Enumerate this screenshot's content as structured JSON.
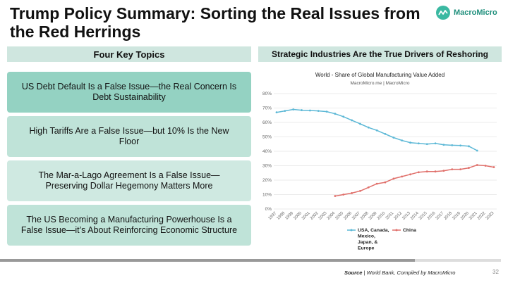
{
  "title": "Trump Policy Summary: Sorting the Real Issues from the Red Herrings",
  "brand": {
    "name": "MacroMicro",
    "color": "#3bb9a2"
  },
  "left_header": "Four Key Topics",
  "right_header": "Strategic Industries Are the True Drivers of Reshoring",
  "topics": [
    "US Debt Default Is a False Issue—the Real Concern Is Debt Sustainability",
    "High Tariffs Are a False Issue—but 10% Is the New Floor",
    "The Mar-a-Lago Agreement Is a False Issue—Preserving Dollar Hegemony Matters More",
    "The US Becoming a Manufacturing Powerhouse Is a False Issue—it’s About Reinforcing Economic Structure"
  ],
  "chart_data": {
    "type": "line",
    "title": "World - Share of Global Manufacturing Value Added",
    "subtitle": "MacroMicro.me | MacroMicro",
    "x": [
      "1997",
      "1998",
      "1999",
      "2000",
      "2001",
      "2002",
      "2003",
      "2004",
      "2005",
      "2006",
      "2007",
      "2008",
      "2009",
      "2010",
      "2011",
      "2012",
      "2013",
      "2014",
      "2015",
      "2016",
      "2017",
      "2018",
      "2019",
      "2020",
      "2021",
      "2022",
      "2023"
    ],
    "yticks": [
      "0%",
      "10%",
      "20%",
      "30%",
      "40%",
      "50%",
      "60%",
      "70%",
      "80%"
    ],
    "ylim": [
      0,
      80
    ],
    "series": [
      {
        "name": "USA, Canada, Mexico, Japan, & Europe",
        "color": "#5cb8d6",
        "values": [
          67,
          68,
          69,
          68.5,
          68.3,
          68,
          67.5,
          66,
          64,
          61.5,
          59,
          56.5,
          54.5,
          52,
          49.5,
          47.5,
          46,
          45.5,
          45,
          45.5,
          44.5,
          44.2,
          44,
          43.5,
          40.5,
          null,
          null
        ]
      },
      {
        "name": "China",
        "color": "#e06f6a",
        "values": [
          null,
          null,
          null,
          null,
          null,
          null,
          null,
          9,
          10,
          11,
          12.5,
          15,
          17.5,
          18.5,
          21,
          22.5,
          24,
          25.5,
          26,
          26,
          26.5,
          27.5,
          27.5,
          28.5,
          30.5,
          30,
          29
        ]
      }
    ],
    "legend": "bottom"
  },
  "source_label": "Source",
  "source_text": "World Bank, Compiled by MacroMicro",
  "page_number": "32"
}
